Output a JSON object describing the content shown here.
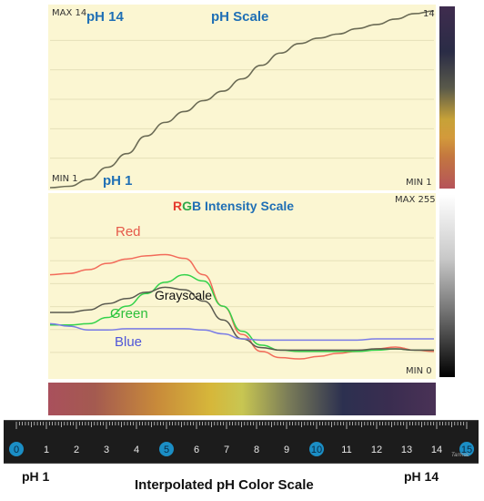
{
  "colors": {
    "panel_bg": "#fbf6d2",
    "grid": "#e6e0b8",
    "ph_line": "#6b6b55",
    "red": "#f26b5a",
    "green": "#33d24a",
    "blue": "#7a7ce6",
    "gray": "#5a5a50",
    "label_blue": "#1f6fb5",
    "ph_scale_gradient": [
      "#b4505a",
      "#9a4858",
      "#c9823a",
      "#d7b136",
      "#c9c74a",
      "#8a8a5a",
      "#2c3050",
      "#3c2e52",
      "#4a3456"
    ]
  },
  "top_panel": {
    "max_label": "MAX 14",
    "min_label_left": "MIN 1",
    "min_label_right": "MIN 1",
    "right_label": "14",
    "ph_high_label": "pH 14",
    "ph_low_label": "pH 1",
    "title": "pH Scale"
  },
  "bottom_panel": {
    "title_r": "R",
    "title_g": "G",
    "title_b": "B",
    "title_rest": " Intensity Scale",
    "max_label": "MAX 255",
    "min_label": "MIN 0",
    "red_label": "Red",
    "green_label": "Green",
    "blue_label": "Blue",
    "gray_label": "Grayscale"
  },
  "ruler": {
    "ticks": [
      "0",
      "1",
      "2",
      "3",
      "4",
      "5",
      "6",
      "7",
      "8",
      "9",
      "10",
      "11",
      "12",
      "13",
      "14",
      "15"
    ],
    "highlighted": [
      "0",
      "5",
      "10",
      "15"
    ],
    "brand": "Tarmac"
  },
  "footer": {
    "left": "pH 1",
    "right": "pH 14",
    "title": "Interpolated pH Color Scale"
  },
  "chart_data": [
    {
      "type": "line",
      "title": "pH Scale",
      "ylim": [
        1,
        14
      ],
      "x": [
        0,
        0.05,
        0.1,
        0.15,
        0.2,
        0.25,
        0.3,
        0.35,
        0.4,
        0.45,
        0.5,
        0.55,
        0.6,
        0.65,
        0.7,
        0.75,
        0.8,
        0.85,
        0.9,
        0.95,
        1.0
      ],
      "series": [
        {
          "values": [
            1.0,
            1.1,
            1.6,
            2.5,
            3.5,
            4.8,
            5.8,
            6.6,
            7.4,
            8.1,
            9.0,
            10.0,
            10.9,
            11.6,
            12.0,
            12.3,
            12.7,
            13.0,
            13.4,
            13.8,
            14.0
          ]
        }
      ]
    },
    {
      "type": "line",
      "title": "RGB Intensity Scale",
      "ylim": [
        0,
        255
      ],
      "x": [
        0,
        0.05,
        0.1,
        0.15,
        0.2,
        0.25,
        0.3,
        0.35,
        0.4,
        0.45,
        0.5,
        0.55,
        0.6,
        0.65,
        0.7,
        0.75,
        0.8,
        0.85,
        0.9,
        0.95,
        1.0
      ],
      "series": [
        {
          "name": "Red",
          "values": [
            160,
            162,
            168,
            178,
            185,
            190,
            192,
            186,
            160,
            110,
            65,
            38,
            28,
            26,
            30,
            35,
            38,
            42,
            45,
            40,
            38
          ]
        },
        {
          "name": "Green",
          "values": [
            80,
            80,
            82,
            92,
            110,
            130,
            148,
            160,
            150,
            110,
            70,
            48,
            40,
            38,
            38,
            38,
            38,
            40,
            42,
            40,
            40
          ]
        },
        {
          "name": "Grayscale",
          "values": [
            100,
            100,
            104,
            114,
            122,
            132,
            140,
            136,
            118,
            88,
            58,
            44,
            40,
            40,
            40,
            40,
            40,
            42,
            42,
            40,
            40
          ]
        },
        {
          "name": "Blue",
          "values": [
            82,
            78,
            72,
            72,
            74,
            74,
            74,
            74,
            72,
            66,
            58,
            56,
            56,
            56,
            56,
            56,
            56,
            58,
            58,
            58,
            58
          ]
        }
      ]
    }
  ]
}
